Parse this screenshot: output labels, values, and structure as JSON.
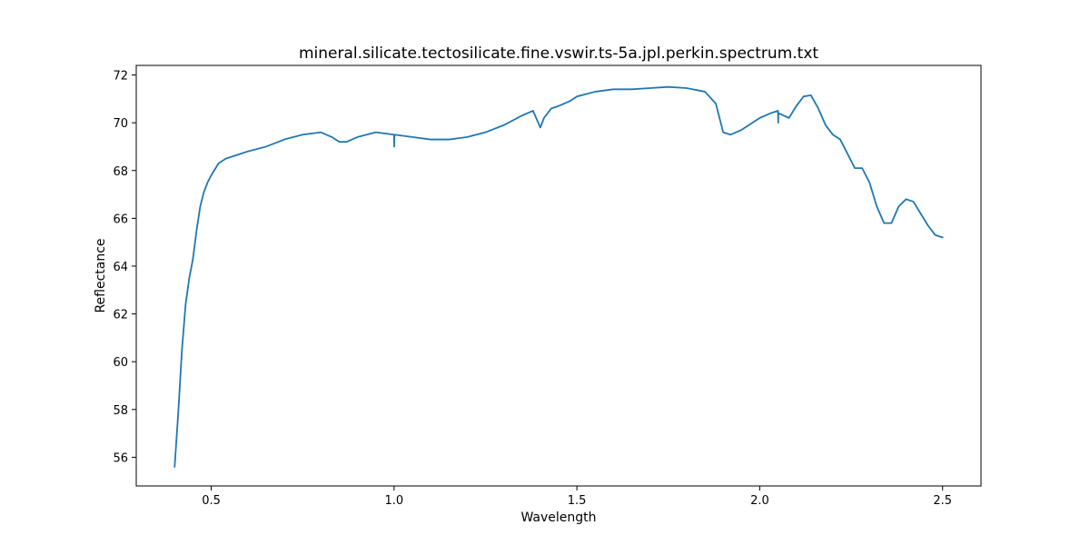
{
  "chart_data": {
    "type": "line",
    "title": "mineral.silicate.tectosilicate.fine.vswir.ts-5a.jpl.perkin.spectrum.txt",
    "xlabel": "Wavelength",
    "ylabel": "Reflectance",
    "xlim": [
      0.295,
      2.605
    ],
    "ylim": [
      54.8,
      72.4
    ],
    "xticks": [
      0.5,
      1.0,
      1.5,
      2.0,
      2.5
    ],
    "xtick_labels": [
      "0.5",
      "1.0",
      "1.5",
      "2.0",
      "2.5"
    ],
    "yticks": [
      56,
      58,
      60,
      62,
      64,
      66,
      68,
      70,
      72
    ],
    "ytick_labels": [
      "56",
      "58",
      "60",
      "62",
      "64",
      "66",
      "68",
      "70",
      "72"
    ],
    "grid": false,
    "colors": {
      "line": "#1f77b4"
    },
    "series": [
      {
        "x": [
          0.4,
          0.41,
          0.42,
          0.43,
          0.44,
          0.45,
          0.46,
          0.47,
          0.48,
          0.49,
          0.5,
          0.52,
          0.54,
          0.56,
          0.58,
          0.6,
          0.65,
          0.7,
          0.75,
          0.8,
          0.83,
          0.85,
          0.87,
          0.9,
          0.95,
          1.0,
          1.0005,
          1.001,
          1.05,
          1.1,
          1.15,
          1.2,
          1.25,
          1.3,
          1.35,
          1.38,
          1.4,
          1.41,
          1.43,
          1.45,
          1.48,
          1.5,
          1.55,
          1.6,
          1.65,
          1.7,
          1.75,
          1.8,
          1.85,
          1.88,
          1.9,
          1.92,
          1.95,
          2.0,
          2.03,
          2.05,
          2.0505,
          2.051,
          2.08,
          2.1,
          2.12,
          2.14,
          2.16,
          2.18,
          2.2,
          2.22,
          2.24,
          2.26,
          2.28,
          2.3,
          2.32,
          2.34,
          2.36,
          2.38,
          2.4,
          2.42,
          2.44,
          2.46,
          2.48,
          2.5
        ],
        "y": [
          55.6,
          57.9,
          60.5,
          62.4,
          63.5,
          64.3,
          65.5,
          66.5,
          67.1,
          67.5,
          67.8,
          68.3,
          68.5,
          68.6,
          68.7,
          68.8,
          69.0,
          69.3,
          69.5,
          69.6,
          69.4,
          69.2,
          69.2,
          69.4,
          69.6,
          69.5,
          69.0,
          69.5,
          69.4,
          69.3,
          69.3,
          69.4,
          69.6,
          69.9,
          70.3,
          70.5,
          69.8,
          70.2,
          70.6,
          70.7,
          70.9,
          71.1,
          71.3,
          71.4,
          71.4,
          71.45,
          71.5,
          71.45,
          71.3,
          70.8,
          69.6,
          69.5,
          69.7,
          70.2,
          70.4,
          70.5,
          70.0,
          70.4,
          70.2,
          70.7,
          71.1,
          71.15,
          70.6,
          69.9,
          69.5,
          69.3,
          68.7,
          68.1,
          68.1,
          67.5,
          66.5,
          65.8,
          65.8,
          66.5,
          66.8,
          66.7,
          66.2,
          65.7,
          65.3,
          65.2
        ]
      }
    ]
  }
}
